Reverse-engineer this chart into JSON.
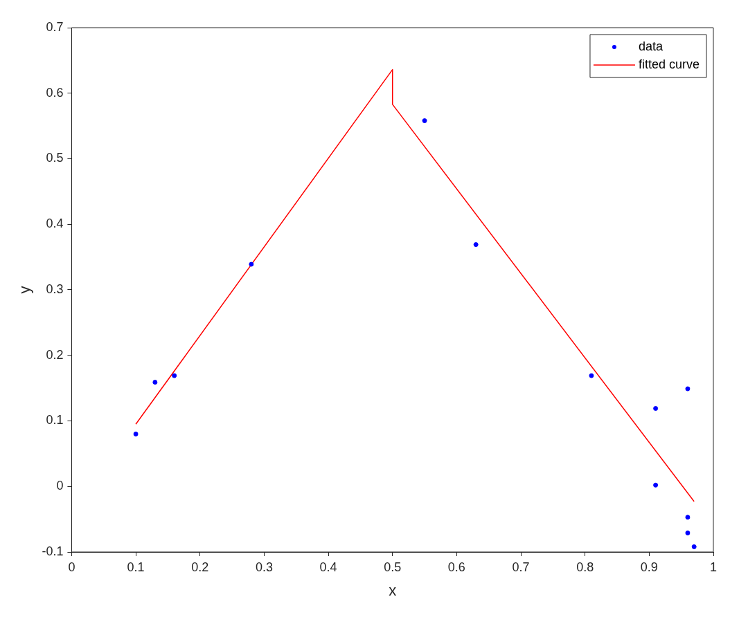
{
  "chart_data": {
    "type": "scatter",
    "xlabel": "x",
    "ylabel": "y",
    "xlim": [
      0,
      1
    ],
    "xticks": [
      0,
      0.1,
      0.2,
      0.3,
      0.4,
      0.5,
      0.6,
      0.7,
      0.8,
      0.9,
      1
    ],
    "ylim": [
      -0.1,
      0.7
    ],
    "yticks": [
      -0.1,
      0,
      0.1,
      0.2,
      0.3,
      0.4,
      0.5,
      0.6,
      0.7
    ],
    "grid": false,
    "legend": "top right",
    "series": [
      {
        "name": "data",
        "type": "scatter",
        "color": "#0000ff",
        "marker": "circle",
        "x": [
          0.1,
          0.13,
          0.16,
          0.28,
          0.55,
          0.63,
          0.81,
          0.91,
          0.96,
          0.91,
          0.96,
          0.96,
          0.97
        ],
        "values": [
          0.08,
          0.159,
          0.169,
          0.339,
          0.558,
          0.369,
          0.169,
          0.119,
          0.149,
          0.002,
          -0.047,
          -0.071,
          -0.092
        ]
      },
      {
        "name": "fitted curve",
        "type": "line",
        "color": "#ff0000",
        "marker": "none",
        "line_style": "solid",
        "x": [
          0.1,
          0.5,
          0.5,
          0.97
        ],
        "values": [
          0.095,
          0.636,
          0.583,
          -0.023
        ]
      }
    ]
  }
}
